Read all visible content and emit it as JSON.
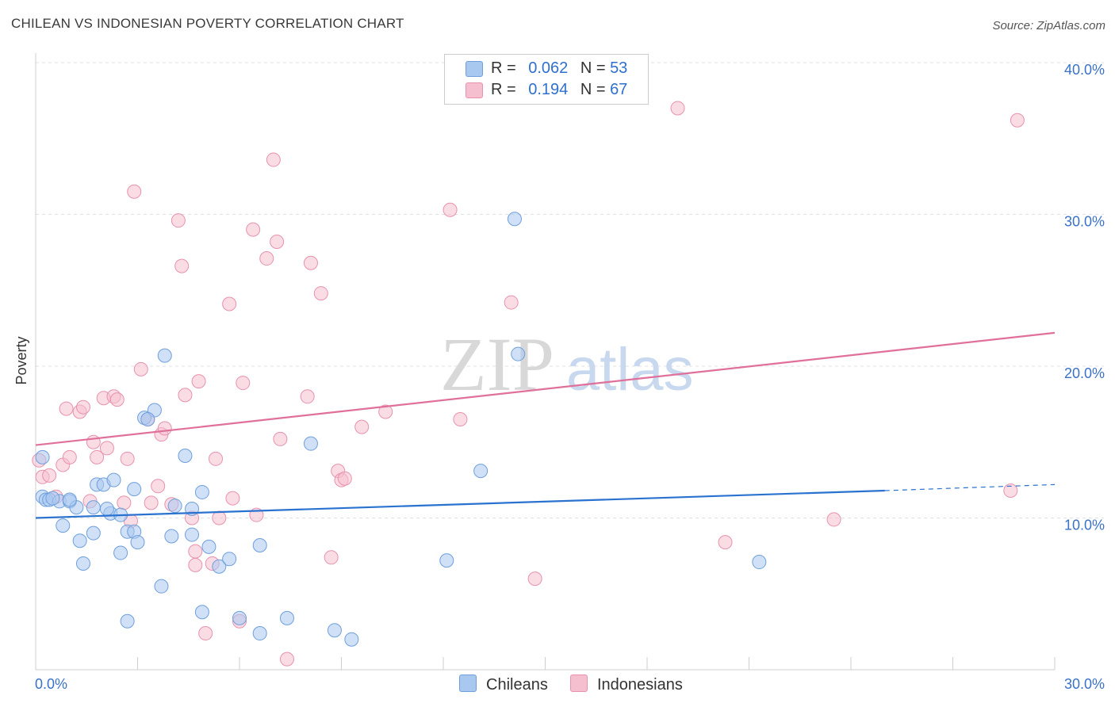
{
  "title": "CHILEAN VS INDONESIAN POVERTY CORRELATION CHART",
  "source": "Source: ZipAtlas.com",
  "watermark": {
    "zip": "ZIP",
    "atlas": "atlas"
  },
  "legend": {
    "rows": [
      {
        "r_label": "R =",
        "r_value": "0.062",
        "n_label": "N =",
        "n_value": "53"
      },
      {
        "r_label": "R =",
        "r_value": "0.194",
        "n_label": "N =",
        "n_value": "67"
      }
    ]
  },
  "bottom_legend": [
    "Chileans",
    "Indonesians"
  ],
  "colors": {
    "chileans_fill": "#a9c8f0",
    "chileans_stroke": "#6e9fdc",
    "chileans_line": "#2a72cf",
    "indonesians_fill": "#f6bfd0",
    "indonesians_stroke": "#e892ad",
    "indonesians_line": "#e0709a",
    "axis_text": "#3a72c8",
    "grid": "#e0e0e0"
  },
  "chart_data": {
    "type": "scatter",
    "title": "CHILEAN VS INDONESIAN POVERTY CORRELATION CHART",
    "xlabel": "",
    "ylabel": "Poverty",
    "xlim": [
      0,
      30
    ],
    "ylim": [
      0,
      40
    ],
    "x_tick_labels": [
      "0.0%",
      "30.0%"
    ],
    "y_ticks": [
      10,
      20,
      30,
      40
    ],
    "y_tick_labels": [
      "10.0%",
      "20.0%",
      "30.0%",
      "40.0%"
    ],
    "series": [
      {
        "name": "Chileans",
        "r": 0.062,
        "n": 53,
        "trend": {
          "x": [
            0,
            25
          ],
          "y": [
            10.0,
            11.8
          ],
          "dashed_to": [
            30,
            12.2
          ]
        },
        "points": [
          [
            0.2,
            11.4
          ],
          [
            0.3,
            11.2
          ],
          [
            0.4,
            11.2
          ],
          [
            0.7,
            11.1
          ],
          [
            1.0,
            11.1
          ],
          [
            1.2,
            10.7
          ],
          [
            0.8,
            9.5
          ],
          [
            1.3,
            8.5
          ],
          [
            1.4,
            7.0
          ],
          [
            1.7,
            10.7
          ],
          [
            1.7,
            9.0
          ],
          [
            1.8,
            12.2
          ],
          [
            2.0,
            12.2
          ],
          [
            2.3,
            12.5
          ],
          [
            2.2,
            10.3
          ],
          [
            2.5,
            10.2
          ],
          [
            2.5,
            7.7
          ],
          [
            2.7,
            9.1
          ],
          [
            2.9,
            9.1
          ],
          [
            3.0,
            8.4
          ],
          [
            2.9,
            11.9
          ],
          [
            3.2,
            16.6
          ],
          [
            3.5,
            17.1
          ],
          [
            3.8,
            20.7
          ],
          [
            3.7,
            5.5
          ],
          [
            4.0,
            8.8
          ],
          [
            4.1,
            10.8
          ],
          [
            4.4,
            14.1
          ],
          [
            4.6,
            8.9
          ],
          [
            4.6,
            10.6
          ],
          [
            4.9,
            11.7
          ],
          [
            5.1,
            8.1
          ],
          [
            5.4,
            6.8
          ],
          [
            5.7,
            7.3
          ],
          [
            6.0,
            3.4
          ],
          [
            6.6,
            8.2
          ],
          [
            6.6,
            2.4
          ],
          [
            7.4,
            3.4
          ],
          [
            8.1,
            14.9
          ],
          [
            8.8,
            2.6
          ],
          [
            9.3,
            2.0
          ],
          [
            12.1,
            7.2
          ],
          [
            13.1,
            13.1
          ],
          [
            14.1,
            29.7
          ],
          [
            14.2,
            20.8
          ],
          [
            21.3,
            7.1
          ],
          [
            0.2,
            14.0
          ],
          [
            4.9,
            3.8
          ],
          [
            2.7,
            3.2
          ],
          [
            3.3,
            16.5
          ],
          [
            1.0,
            11.2
          ],
          [
            2.1,
            10.6
          ],
          [
            0.5,
            11.3
          ]
        ]
      },
      {
        "name": "Indonesians",
        "r": 0.194,
        "n": 67,
        "trend": {
          "x": [
            0,
            30
          ],
          "y": [
            14.8,
            22.2
          ]
        },
        "points": [
          [
            0.1,
            13.8
          ],
          [
            0.2,
            12.7
          ],
          [
            0.4,
            12.8
          ],
          [
            0.6,
            11.4
          ],
          [
            0.8,
            13.5
          ],
          [
            1.0,
            14.0
          ],
          [
            0.9,
            17.2
          ],
          [
            1.3,
            17.0
          ],
          [
            1.4,
            17.3
          ],
          [
            1.6,
            11.1
          ],
          [
            1.7,
            15.0
          ],
          [
            1.8,
            14.0
          ],
          [
            2.1,
            14.6
          ],
          [
            2.0,
            17.9
          ],
          [
            2.3,
            18.0
          ],
          [
            2.4,
            17.8
          ],
          [
            2.6,
            11.0
          ],
          [
            2.7,
            13.9
          ],
          [
            2.8,
            9.8
          ],
          [
            2.9,
            31.5
          ],
          [
            3.1,
            19.8
          ],
          [
            3.3,
            16.5
          ],
          [
            3.4,
            11.0
          ],
          [
            3.6,
            12.1
          ],
          [
            3.7,
            15.5
          ],
          [
            3.8,
            15.9
          ],
          [
            4.0,
            10.9
          ],
          [
            4.2,
            29.6
          ],
          [
            4.3,
            26.6
          ],
          [
            4.4,
            18.1
          ],
          [
            4.6,
            10.0
          ],
          [
            4.7,
            7.8
          ],
          [
            4.8,
            19.0
          ],
          [
            5.0,
            2.4
          ],
          [
            5.2,
            7.0
          ],
          [
            5.3,
            13.9
          ],
          [
            5.4,
            10.0
          ],
          [
            5.7,
            24.1
          ],
          [
            5.8,
            11.3
          ],
          [
            6.0,
            3.2
          ],
          [
            6.1,
            18.9
          ],
          [
            6.4,
            29.0
          ],
          [
            6.5,
            10.2
          ],
          [
            6.8,
            27.1
          ],
          [
            7.0,
            33.6
          ],
          [
            7.1,
            28.2
          ],
          [
            7.2,
            15.2
          ],
          [
            7.4,
            0.7
          ],
          [
            8.0,
            18.0
          ],
          [
            8.1,
            26.8
          ],
          [
            8.4,
            24.8
          ],
          [
            8.7,
            7.4
          ],
          [
            8.9,
            13.1
          ],
          [
            9.0,
            12.5
          ],
          [
            9.1,
            12.6
          ],
          [
            9.6,
            16.0
          ],
          [
            10.3,
            17.0
          ],
          [
            12.2,
            30.3
          ],
          [
            12.5,
            16.5
          ],
          [
            14.0,
            24.2
          ],
          [
            14.7,
            6.0
          ],
          [
            18.9,
            37.0
          ],
          [
            20.3,
            8.4
          ],
          [
            23.5,
            9.9
          ],
          [
            28.7,
            11.8
          ],
          [
            28.9,
            36.2
          ],
          [
            4.7,
            6.9
          ]
        ]
      }
    ]
  }
}
